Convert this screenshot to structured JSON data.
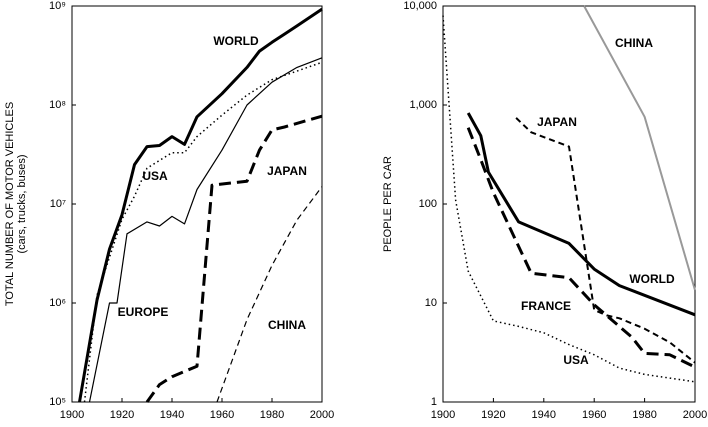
{
  "chart_data": [
    {
      "type": "line",
      "y_label": "TOTAL NUMBER OF MOTOR VEHICLES",
      "y_sublabel": "(cars, trucks, buses)",
      "log_y": true,
      "xlim": [
        1900,
        2000
      ],
      "ylim": [
        100000,
        1000000000
      ],
      "xticks": [
        1900,
        1920,
        1940,
        1960,
        1980,
        2000
      ],
      "yticks": [
        {
          "value": 100000,
          "label": "10⁵"
        },
        {
          "value": 1000000,
          "label": "10⁶"
        },
        {
          "value": 10000000,
          "label": "10⁷"
        },
        {
          "value": 100000000,
          "label": "10⁸"
        },
        {
          "value": 1000000000,
          "label": "10⁹"
        }
      ],
      "series": [
        {
          "name": "WORLD",
          "color": "#000000",
          "style": "solid",
          "width": 3,
          "x": [
            1903,
            1910,
            1915,
            1920,
            1925,
            1930,
            1935,
            1940,
            1945,
            1950,
            1960,
            1970,
            1975,
            1980,
            1985,
            1990,
            2000
          ],
          "values": [
            100000,
            1070000,
            3500000,
            7800000,
            25000000,
            38000000,
            39000000,
            48000000,
            40000000,
            76000000,
            130000000,
            240000000,
            350000000,
            430000000,
            520000000,
            630000000,
            930000000
          ]
        },
        {
          "name": "USA",
          "color": "#000000",
          "style": "dotted",
          "width": 1.5,
          "x": [
            1905,
            1910,
            1920,
            1925,
            1930,
            1940,
            1945,
            1950,
            1960,
            1970,
            1980,
            1990,
            2000
          ],
          "values": [
            100000,
            1200000,
            7000000,
            12000000,
            23000000,
            33000000,
            33000000,
            48000000,
            79000000,
            126000000,
            180000000,
            220000000,
            270000000
          ]
        },
        {
          "name": "EUROPE",
          "color": "#000000",
          "style": "solid",
          "width": 1.2,
          "x": [
            1907,
            1915,
            1918,
            1922,
            1930,
            1935,
            1940,
            1945,
            1950,
            1960,
            1970,
            1980,
            1990,
            2000
          ],
          "values": [
            100000,
            1000000,
            1000000,
            5000000,
            6600000,
            6000000,
            7500000,
            6300000,
            14000000,
            35000000,
            100000000,
            170000000,
            240000000,
            300000000
          ]
        },
        {
          "name": "JAPAN",
          "color": "#000000",
          "style": "longdash",
          "width": 3,
          "x": [
            1930,
            1935,
            1940,
            1950,
            1956,
            1970,
            1975,
            1980,
            1985,
            2000
          ],
          "values": [
            100000,
            150000,
            180000,
            230000,
            15500000,
            17000000,
            35000000,
            56000000,
            60000000,
            77000000
          ]
        },
        {
          "name": "CHINA",
          "color": "#000000",
          "style": "dash",
          "width": 1.2,
          "x": [
            1958,
            1970,
            1980,
            1990,
            2000
          ],
          "values": [
            100000,
            680000,
            2400000,
            6900000,
            15000000
          ]
        }
      ]
    },
    {
      "type": "line",
      "y_label": "PEOPLE PER CAR",
      "log_y": true,
      "xlim": [
        1900,
        2000
      ],
      "ylim": [
        1,
        10000
      ],
      "xticks": [
        1900,
        1920,
        1940,
        1960,
        1980,
        2000
      ],
      "yticks": [
        1,
        10,
        100,
        {
          "value": 1000,
          "label": "1,000"
        },
        {
          "value": 10000,
          "label": "10,000"
        }
      ],
      "series": [
        {
          "name": "CHINA",
          "color": "#999999",
          "style": "solid",
          "width": 2,
          "x": [
            1956,
            1980,
            2000
          ],
          "values": [
            10000,
            760,
            13.5
          ]
        },
        {
          "name": "JAPAN",
          "color": "#000000",
          "style": "dash",
          "width": 2,
          "x": [
            1929,
            1935,
            1950,
            1960,
            1965,
            1970,
            1980,
            1990,
            2000
          ],
          "values": [
            740,
            530,
            380,
            8.5,
            7.5,
            7,
            5.5,
            4,
            2.5
          ]
        },
        {
          "name": "WORLD",
          "color": "#000000",
          "style": "solid",
          "width": 3,
          "x": [
            1910,
            1915,
            1918,
            1930,
            1950,
            1960,
            1970,
            2000
          ],
          "values": [
            830,
            490,
            210,
            66,
            40,
            22,
            15,
            7.6
          ]
        },
        {
          "name": "FRANCE",
          "color": "#000000",
          "style": "longdash",
          "width": 3,
          "x": [
            1910,
            1915,
            1920,
            1935,
            1950,
            1960,
            1975,
            1980,
            1990,
            2000
          ],
          "values": [
            590,
            280,
            130,
            20,
            18,
            9.6,
            4.5,
            3.1,
            3,
            2.25
          ]
        },
        {
          "name": "USA",
          "color": "#000000",
          "style": "dotted",
          "width": 1.5,
          "x": [
            1900,
            1905,
            1910,
            1920,
            1930,
            1940,
            1950,
            1960,
            1970,
            1980,
            2000
          ],
          "values": [
            8000,
            110,
            21,
            6.6,
            5.8,
            5,
            3.8,
            3,
            2.2,
            1.9,
            1.6
          ]
        }
      ]
    }
  ]
}
